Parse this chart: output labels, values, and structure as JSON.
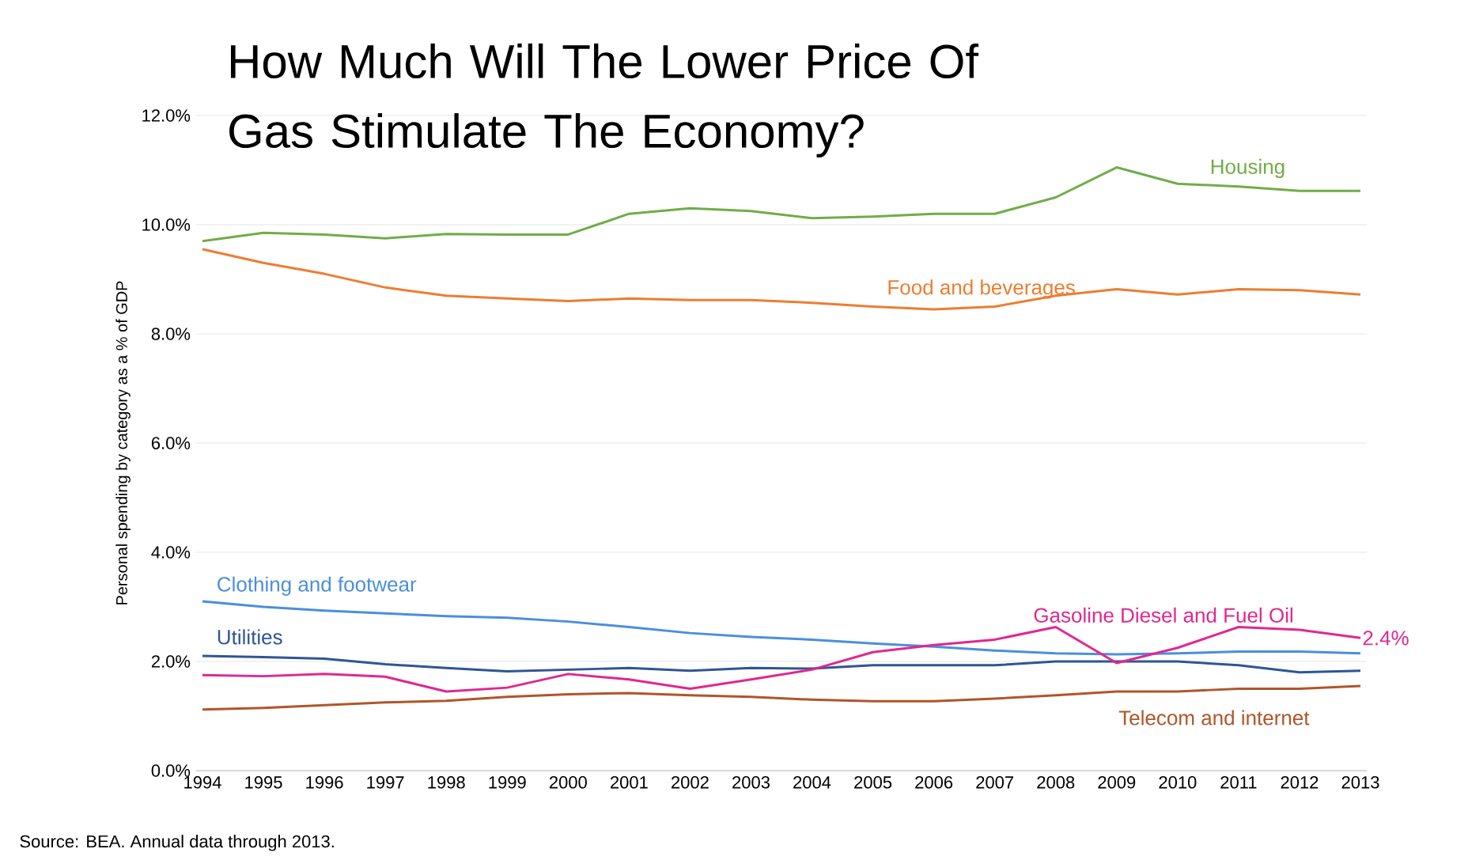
{
  "chart_data": {
    "type": "line",
    "title": "How Much Will The Lower Price Of Gas Stimulate The Economy?",
    "ylabel": "Personal spending by category as a % of GDP",
    "categories": [
      "1994",
      "1995",
      "1996",
      "1997",
      "1998",
      "1999",
      "2000",
      "2001",
      "2002",
      "2003",
      "2004",
      "2005",
      "2006",
      "2007",
      "2008",
      "2009",
      "2010",
      "2011",
      "2012",
      "2013"
    ],
    "series": [
      {
        "name": "Housing",
        "color": "#70ad47",
        "values": [
          9.7,
          9.85,
          9.82,
          9.75,
          9.83,
          9.82,
          9.82,
          10.2,
          10.3,
          10.25,
          10.12,
          10.15,
          10.2,
          10.2,
          10.5,
          11.05,
          10.75,
          10.7,
          10.62,
          10.62
        ]
      },
      {
        "name": "Food and beverages",
        "color": "#ed7d31",
        "values": [
          9.55,
          9.3,
          9.1,
          8.85,
          8.7,
          8.65,
          8.6,
          8.65,
          8.62,
          8.62,
          8.57,
          8.5,
          8.45,
          8.5,
          8.7,
          8.82,
          8.72,
          8.82,
          8.8,
          8.72
        ]
      },
      {
        "name": "Clothing and footwear",
        "color": "#4a8fdc",
        "values": [
          3.1,
          3.0,
          2.93,
          2.88,
          2.83,
          2.8,
          2.73,
          2.63,
          2.52,
          2.45,
          2.4,
          2.33,
          2.27,
          2.2,
          2.15,
          2.13,
          2.15,
          2.18,
          2.18,
          2.15
        ]
      },
      {
        "name": "Utilities",
        "color": "#2f5597",
        "values": [
          2.1,
          2.08,
          2.05,
          1.95,
          1.88,
          1.82,
          1.85,
          1.88,
          1.83,
          1.88,
          1.87,
          1.93,
          1.93,
          1.93,
          2.0,
          2.0,
          2.0,
          1.93,
          1.8,
          1.83
        ]
      },
      {
        "name": "Gasoline Diesel and Fuel Oil",
        "color": "#e0288f",
        "values": [
          1.75,
          1.73,
          1.77,
          1.72,
          1.45,
          1.52,
          1.77,
          1.67,
          1.5,
          1.67,
          1.85,
          2.17,
          2.3,
          2.4,
          2.63,
          1.97,
          2.25,
          2.63,
          2.58,
          2.43
        ],
        "value_labels": [
          null,
          null,
          null,
          null,
          null,
          null,
          null,
          null,
          null,
          null,
          null,
          null,
          null,
          null,
          null,
          null,
          null,
          null,
          null,
          "2.4%"
        ]
      },
      {
        "name": "Telecom and internet",
        "color": "#b0562a",
        "values": [
          1.12,
          1.15,
          1.2,
          1.25,
          1.28,
          1.35,
          1.4,
          1.42,
          1.38,
          1.35,
          1.3,
          1.27,
          1.27,
          1.32,
          1.38,
          1.45,
          1.45,
          1.5,
          1.5,
          1.55
        ]
      }
    ],
    "ylim": [
      0,
      12
    ],
    "yticks": [
      {
        "value": 0,
        "label": "0.0%"
      },
      {
        "value": 2,
        "label": "2.0%"
      },
      {
        "value": 4,
        "label": "4.0%"
      },
      {
        "value": 6,
        "label": "6.0%"
      },
      {
        "value": 8,
        "label": "8.0%"
      },
      {
        "value": 10,
        "label": "10.0%"
      },
      {
        "value": 12,
        "label": "12.0%"
      }
    ],
    "grid": "y",
    "legend": false,
    "marker": "none",
    "line_style": "solid",
    "annotations": [
      "Source: BEA. Annual data through  2013."
    ]
  }
}
